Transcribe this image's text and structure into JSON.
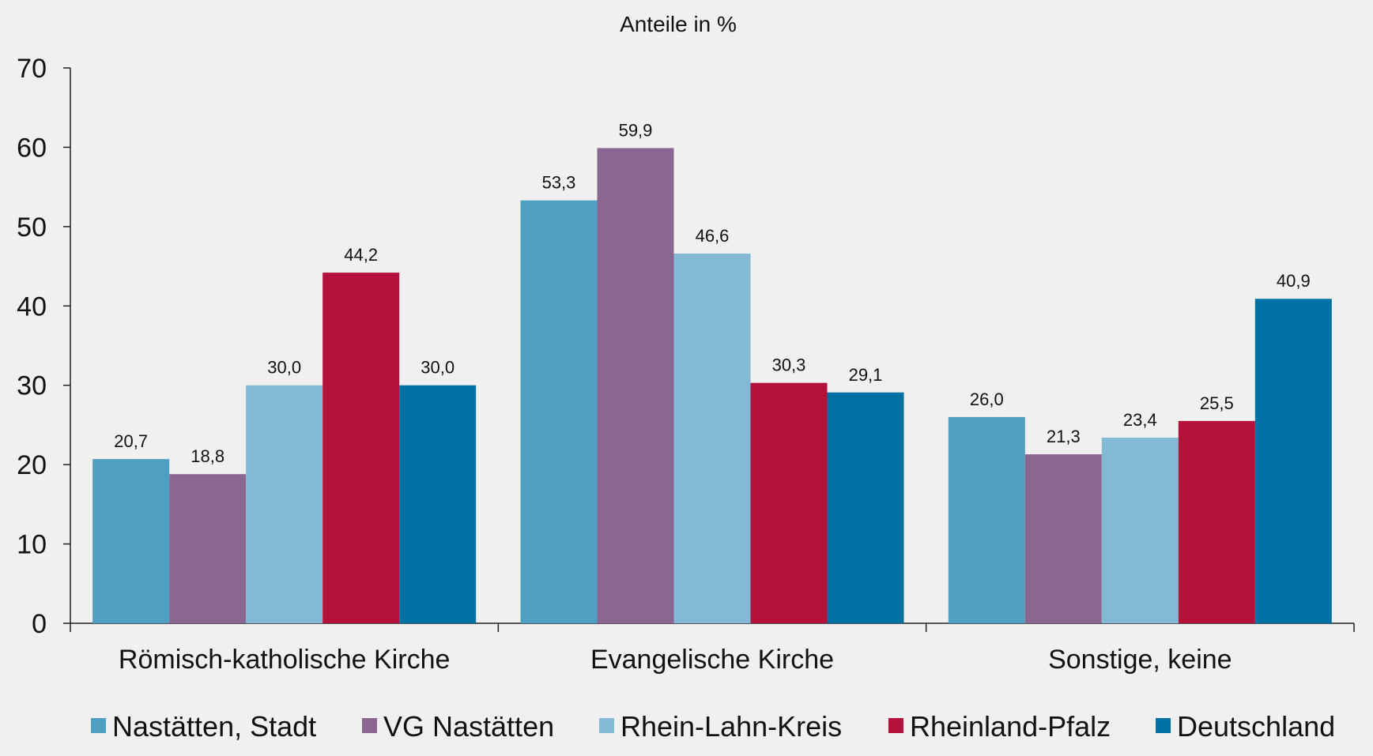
{
  "chart_data": {
    "type": "bar",
    "title": "Anteile in %",
    "xlabel": "",
    "ylabel": "",
    "ylim": [
      0,
      70
    ],
    "yticks": [
      0,
      10,
      20,
      30,
      40,
      50,
      60,
      70
    ],
    "grid": false,
    "legend_position": "bottom",
    "categories": [
      "Römisch-katholische Kirche",
      "Evangelische Kirche",
      "Sonstige, keine"
    ],
    "series": [
      {
        "name": "Nastätten, Stadt",
        "color": "#4e9fc2",
        "values": [
          20.7,
          53.3,
          26.0
        ],
        "labels": [
          "20,7",
          "53,3",
          "26,0"
        ]
      },
      {
        "name": "VG Nastätten",
        "color": "#8a6790",
        "values": [
          18.8,
          59.9,
          21.3
        ],
        "labels": [
          "18,8",
          "59,9",
          "21,3"
        ]
      },
      {
        "name": "Rhein-Lahn-Kreis",
        "color": "#83b9d5",
        "values": [
          30.0,
          46.6,
          23.4
        ],
        "labels": [
          "30,0",
          "46,6",
          "23,4"
        ]
      },
      {
        "name": "Rheinland-Pfalz",
        "color": "#b5123b",
        "values": [
          44.2,
          30.3,
          25.5
        ],
        "labels": [
          "44,2",
          "30,3",
          "25,5"
        ]
      },
      {
        "name": "Deutschland",
        "color": "#0071a3",
        "values": [
          30.0,
          29.1,
          40.9
        ],
        "labels": [
          "30,0",
          "29,1",
          "40,9"
        ]
      }
    ]
  }
}
